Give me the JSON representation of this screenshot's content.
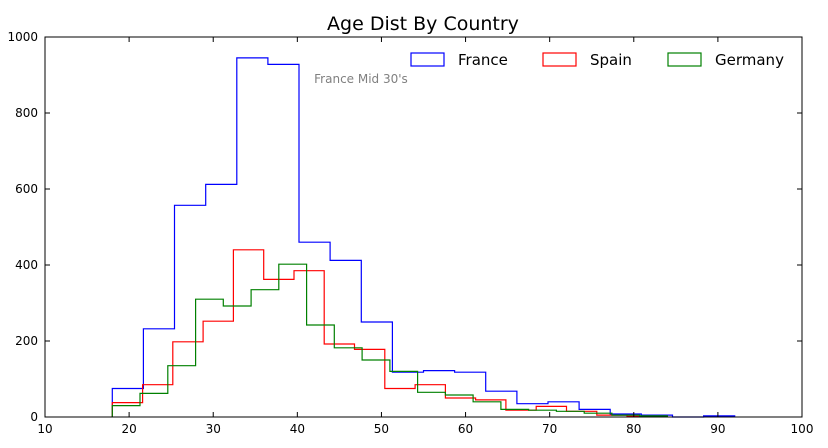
{
  "chart_data": {
    "type": "histogram-step",
    "title": "Age Dist By Country",
    "xlabel": "",
    "ylabel": "",
    "xlim": [
      10,
      100
    ],
    "ylim": [
      0,
      1000
    ],
    "xticks": [
      10,
      20,
      30,
      40,
      50,
      60,
      70,
      80,
      90,
      100
    ],
    "yticks": [
      0,
      200,
      400,
      600,
      800,
      1000
    ],
    "legend_position": "top-right",
    "annotation": {
      "text": "France Mid 30's",
      "x": 42,
      "y": 890
    },
    "series": [
      {
        "name": "France",
        "color": "#0000ff",
        "edges": [
          18,
          21.7,
          25.4,
          29.1,
          32.8,
          36.5,
          40.2,
          43.9,
          47.6,
          51.3,
          55,
          58.7,
          62.4,
          66.1,
          69.8,
          73.5,
          77.2,
          80.9,
          84.6,
          88.3,
          92
        ],
        "values": [
          75,
          232,
          557,
          612,
          945,
          928,
          460,
          412,
          250,
          118,
          122,
          118,
          68,
          35,
          40,
          20,
          8,
          5,
          0,
          3
        ]
      },
      {
        "name": "Spain",
        "color": "#ff0000",
        "edges": [
          18,
          21.6,
          25.2,
          28.8,
          32.4,
          36,
          39.6,
          43.2,
          46.8,
          50.4,
          54,
          57.6,
          61.2,
          64.8,
          68.4,
          72,
          75.6,
          79.2,
          82.8
        ],
        "values": [
          38,
          85,
          198,
          252,
          440,
          362,
          385,
          192,
          178,
          75,
          85,
          50,
          45,
          18,
          28,
          15,
          5,
          2
        ]
      },
      {
        "name": "Germany",
        "color": "#008000",
        "edges": [
          18,
          21.3,
          24.6,
          27.9,
          31.2,
          34.5,
          37.8,
          41.1,
          44.4,
          47.7,
          51,
          54.3,
          57.6,
          60.9,
          64.2,
          67.5,
          70.8,
          74.1,
          77.4,
          80.7,
          84
        ],
        "values": [
          30,
          62,
          135,
          310,
          292,
          335,
          402,
          242,
          182,
          150,
          120,
          65,
          58,
          40,
          20,
          18,
          15,
          10,
          5,
          3
        ]
      }
    ]
  }
}
